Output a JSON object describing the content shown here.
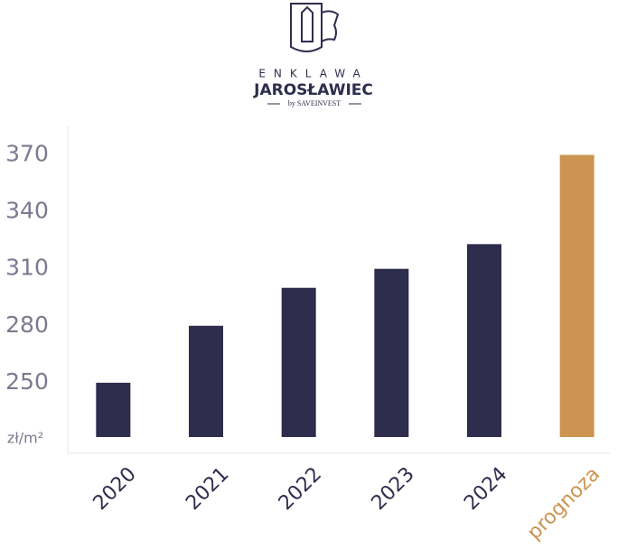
{
  "logo": {
    "line1": "ENKLAWA",
    "line2": "JAROSŁAWIEC",
    "line3": "by SAVEINVEST"
  },
  "chart_data": {
    "type": "bar",
    "y_label": "zł/m²",
    "categories": [
      "2020",
      "2021",
      "2022",
      "2023",
      "2024",
      "prognoza"
    ],
    "values": [
      250,
      280,
      300,
      310,
      323,
      370
    ],
    "colors": [
      "#2e2d4d",
      "#2e2d4d",
      "#2e2d4d",
      "#2e2d4d",
      "#2e2d4d",
      "#cc9450"
    ],
    "ylim": [
      221.4,
      385
    ],
    "yticks": [
      250,
      280,
      310,
      340,
      370
    ],
    "grid": false
  }
}
